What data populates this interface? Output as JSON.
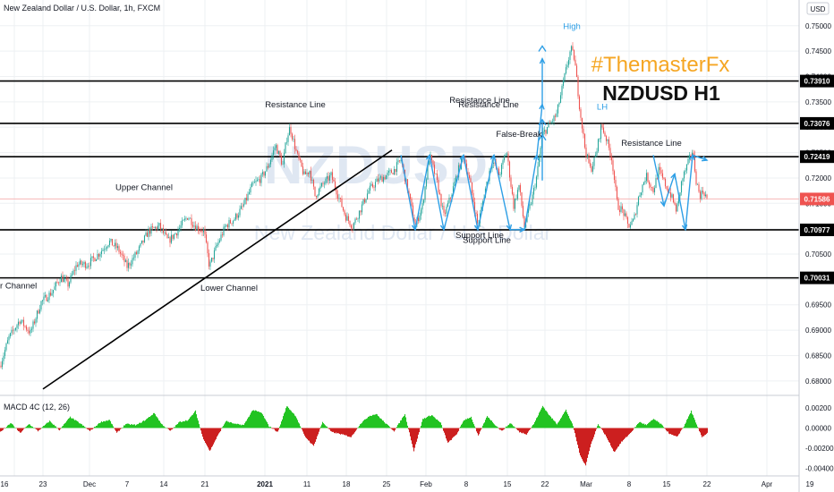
{
  "header": {
    "symbol_title": "New Zealand Dollar / U.S. Dollar, 1h, FXCM"
  },
  "currency_label": "USD",
  "watermark": {
    "primary": "NZDUSD",
    "secondary": "New Zealand Dollar / U.S. Dollar"
  },
  "brand_tag": "#ThemasterFx",
  "pair_heading": "NZDUSD H1",
  "colors": {
    "up": "#26a69a",
    "down": "#ef5350",
    "macd_up": "#22c322",
    "macd_down": "#cc1f1f",
    "annotation_blue": "#2e9fe6",
    "brand_orange": "#f5a623",
    "last_price_line": "#f7b6b6"
  },
  "chart_data": [
    {
      "type": "candlestick",
      "title": "",
      "x_ticks": [
        "16",
        "23",
        "Dec",
        "7",
        "14",
        "21",
        "2021",
        "11",
        "18",
        "25",
        "Feb",
        "8",
        "15",
        "22",
        "Mar",
        "8",
        "15",
        "22",
        "Apr",
        "19"
      ],
      "y_ticks": [
        0.68,
        0.685,
        0.69,
        0.695,
        0.7,
        0.705,
        0.71,
        0.715,
        0.72,
        0.725,
        0.73,
        0.735,
        0.74,
        0.745,
        0.75
      ],
      "y_tick_labels": [
        "0.68000",
        "0.68500",
        "0.69000",
        "0.69500",
        "0.70000",
        "0.70500",
        "0.71000",
        "0.71500",
        "0.72000",
        "0.72500",
        "0.73000",
        "0.73500",
        "0.74000",
        "0.74500",
        "0.75000"
      ],
      "ylim": [
        0.6775,
        0.7519
      ],
      "price_path": [
        [
          0,
          0.683
        ],
        [
          10,
          0.6885
        ],
        [
          22,
          0.692
        ],
        [
          34,
          0.6895
        ],
        [
          46,
          0.6955
        ],
        [
          58,
          0.6975
        ],
        [
          68,
          0.7005
        ],
        [
          76,
          0.699
        ],
        [
          86,
          0.703
        ],
        [
          98,
          0.703
        ],
        [
          110,
          0.705
        ],
        [
          122,
          0.7075
        ],
        [
          132,
          0.706
        ],
        [
          142,
          0.7025
        ],
        [
          154,
          0.7055
        ],
        [
          166,
          0.7095
        ],
        [
          178,
          0.7105
        ],
        [
          188,
          0.7075
        ],
        [
          198,
          0.7095
        ],
        [
          210,
          0.7125
        ],
        [
          218,
          0.7105
        ],
        [
          228,
          0.7095
        ],
        [
          234,
          0.7025
        ],
        [
          242,
          0.7065
        ],
        [
          252,
          0.7105
        ],
        [
          262,
          0.712
        ],
        [
          272,
          0.7145
        ],
        [
          282,
          0.7185
        ],
        [
          292,
          0.72
        ],
        [
          300,
          0.7225
        ],
        [
          308,
          0.7265
        ],
        [
          316,
          0.7225
        ],
        [
          320,
          0.7275
        ],
        [
          324,
          0.73
        ],
        [
          332,
          0.7245
        ],
        [
          340,
          0.7205
        ],
        [
          346,
          0.7215
        ],
        [
          352,
          0.7165
        ],
        [
          360,
          0.7185
        ],
        [
          370,
          0.7205
        ],
        [
          378,
          0.7165
        ],
        [
          386,
          0.7125
        ],
        [
          394,
          0.7105
        ],
        [
          402,
          0.7135
        ],
        [
          412,
          0.7175
        ],
        [
          422,
          0.7195
        ],
        [
          432,
          0.7205
        ],
        [
          440,
          0.7215
        ],
        [
          448,
          0.7235
        ],
        [
          456,
          0.7175
        ],
        [
          464,
          0.7105
        ],
        [
          472,
          0.7145
        ],
        [
          480,
          0.7245
        ],
        [
          488,
          0.7195
        ],
        [
          496,
          0.7125
        ],
        [
          504,
          0.7165
        ],
        [
          512,
          0.7215
        ],
        [
          518,
          0.7245
        ],
        [
          526,
          0.7185
        ],
        [
          534,
          0.7105
        ],
        [
          542,
          0.7175
        ],
        [
          550,
          0.7235
        ],
        [
          558,
          0.7205
        ],
        [
          566,
          0.7255
        ],
        [
          574,
          0.7145
        ],
        [
          580,
          0.7185
        ],
        [
          586,
          0.7105
        ],
        [
          594,
          0.7155
        ],
        [
          600,
          0.7205
        ],
        [
          606,
          0.7285
        ],
        [
          614,
          0.7305
        ],
        [
          622,
          0.7325
        ],
        [
          628,
          0.7375
        ],
        [
          634,
          0.7425
        ],
        [
          638,
          0.7455
        ],
        [
          642,
          0.7435
        ],
        [
          648,
          0.7335
        ],
        [
          654,
          0.7255
        ],
        [
          660,
          0.7215
        ],
        [
          666,
          0.7245
        ],
        [
          672,
          0.7305
        ],
        [
          678,
          0.7275
        ],
        [
          684,
          0.7235
        ],
        [
          690,
          0.7145
        ],
        [
          696,
          0.7135
        ],
        [
          702,
          0.7105
        ],
        [
          708,
          0.7115
        ],
        [
          714,
          0.7165
        ],
        [
          722,
          0.7205
        ],
        [
          730,
          0.7175
        ],
        [
          736,
          0.7215
        ],
        [
          744,
          0.7185
        ],
        [
          750,
          0.7165
        ],
        [
          756,
          0.7135
        ],
        [
          762,
          0.7195
        ],
        [
          768,
          0.7225
        ],
        [
          774,
          0.7255
        ],
        [
          778,
          0.7195
        ],
        [
          782,
          0.7165
        ],
        [
          786,
          0.7175
        ],
        [
          790,
          0.7159
        ]
      ],
      "horizontal_levels": [
        {
          "value": 0.7391,
          "label": "0.73910"
        },
        {
          "value": 0.73076,
          "label": "0.73076"
        },
        {
          "value": 0.72419,
          "label": "0.72419"
        },
        {
          "value": 0.70977,
          "label": "0.70977"
        },
        {
          "value": 0.70031,
          "label": "0.70031"
        }
      ],
      "last_price": {
        "value": 0.71586,
        "label": "0.71586"
      },
      "trendline": {
        "from": [
          48,
          0.6784
        ],
        "to": [
          438,
          0.7255
        ]
      },
      "annotations": [
        {
          "text": "Resistance Line",
          "x": 330,
          "y": 0.7339
        },
        {
          "text": "Upper Channel",
          "x": 161,
          "y": 0.7176
        },
        {
          "text": "er Channel",
          "x": 18,
          "y": 0.6982
        },
        {
          "text": "Lower Channel",
          "x": 256,
          "y": 0.6978
        },
        {
          "text": "Resistance Line",
          "x": 536,
          "y": 0.7348
        },
        {
          "text": "Resistance Line",
          "x": 546,
          "y": 0.7339
        },
        {
          "text": "False-Break",
          "x": 580,
          "y": 0.7281
        },
        {
          "text": "Support Line",
          "x": 536,
          "y": 0.7082
        },
        {
          "text": "Support Line",
          "x": 544,
          "y": 0.7072
        },
        {
          "text": "High",
          "x": 639,
          "y": 0.7493,
          "color": "blue"
        },
        {
          "text": "LH",
          "x": 673,
          "y": 0.7335,
          "color": "blue"
        },
        {
          "text": "Resistance Line",
          "x": 728,
          "y": 0.7263
        }
      ],
      "zigzag_paths": [
        [
          [
            448,
            0.7245
          ],
          [
            464,
            0.7098
          ],
          [
            480,
            0.7245
          ],
          [
            496,
            0.7098
          ],
          [
            518,
            0.7245
          ],
          [
            534,
            0.7098
          ],
          [
            552,
            0.7245
          ],
          [
            570,
            0.7098
          ],
          [
            586,
            0.7098
          ],
          [
            600,
            0.7245
          ],
          [
            606,
            0.7345
          ],
          [
            606,
            0.7435
          ]
        ],
        [
          [
            730,
            0.7245
          ],
          [
            742,
            0.7145
          ],
          [
            754,
            0.7208
          ],
          [
            766,
            0.7098
          ],
          [
            774,
            0.7245
          ],
          [
            790,
            0.7235
          ]
        ]
      ]
    },
    {
      "type": "bar",
      "title": "MACD 4C (12, 26)",
      "y_ticks": [
        0.002,
        0,
        -0.002,
        -0.004
      ],
      "y_tick_labels": [
        "0.00200",
        "0.00000",
        "-0.00200",
        "-0.00400"
      ],
      "ylim": [
        -0.0046,
        0.0029
      ],
      "histogram_anchors": [
        [
          0,
          -0.0004
        ],
        [
          12,
          0.0005
        ],
        [
          22,
          -0.0005
        ],
        [
          32,
          0.0004
        ],
        [
          42,
          -0.0003
        ],
        [
          55,
          0.0007
        ],
        [
          66,
          -0.0002
        ],
        [
          78,
          0.0011
        ],
        [
          90,
          0.0004
        ],
        [
          100,
          -0.0003
        ],
        [
          112,
          0.0006
        ],
        [
          122,
          0.0008
        ],
        [
          130,
          -0.0005
        ],
        [
          140,
          0.0004
        ],
        [
          152,
          0.0003
        ],
        [
          162,
          0.0008
        ],
        [
          172,
          0.0015
        ],
        [
          180,
          0.0004
        ],
        [
          190,
          -0.0003
        ],
        [
          200,
          0.0006
        ],
        [
          210,
          0.0008
        ],
        [
          218,
          0.0017
        ],
        [
          226,
          -0.0009
        ],
        [
          234,
          -0.0023
        ],
        [
          242,
          -0.0009
        ],
        [
          252,
          0.0007
        ],
        [
          262,
          0.0004
        ],
        [
          272,
          0.0003
        ],
        [
          282,
          0.0018
        ],
        [
          292,
          0.0015
        ],
        [
          300,
          0.0002
        ],
        [
          310,
          -0.0004
        ],
        [
          320,
          0.0022
        ],
        [
          330,
          0.0012
        ],
        [
          340,
          -0.0008
        ],
        [
          350,
          -0.0018
        ],
        [
          360,
          0.0006
        ],
        [
          370,
          -0.0004
        ],
        [
          380,
          -0.0006
        ],
        [
          392,
          -0.0009
        ],
        [
          402,
          0.0004
        ],
        [
          412,
          0.0012
        ],
        [
          420,
          0.0014
        ],
        [
          430,
          0.0005
        ],
        [
          440,
          -0.0003
        ],
        [
          452,
          0.0014
        ],
        [
          462,
          -0.0023
        ],
        [
          472,
          0.0009
        ],
        [
          482,
          0.0013
        ],
        [
          492,
          0.0005
        ],
        [
          500,
          -0.0015
        ],
        [
          510,
          -0.0006
        ],
        [
          518,
          0.0008
        ],
        [
          526,
          0.0011
        ],
        [
          534,
          -0.0008
        ],
        [
          544,
          0.0012
        ],
        [
          552,
          0.0004
        ],
        [
          560,
          -0.0003
        ],
        [
          570,
          0.0005
        ],
        [
          580,
          -0.0004
        ],
        [
          588,
          -0.0006
        ],
        [
          596,
          0.0004
        ],
        [
          606,
          0.0022
        ],
        [
          614,
          0.0012
        ],
        [
          622,
          0.0004
        ],
        [
          632,
          0.0018
        ],
        [
          640,
          0.0002
        ],
        [
          648,
          -0.0028
        ],
        [
          654,
          -0.0037
        ],
        [
          660,
          -0.0016
        ],
        [
          668,
          0.0004
        ],
        [
          676,
          -0.0007
        ],
        [
          686,
          -0.0024
        ],
        [
          694,
          -0.0014
        ],
        [
          704,
          -0.0005
        ],
        [
          714,
          0.0006
        ],
        [
          722,
          0.0003
        ],
        [
          730,
          0.0009
        ],
        [
          738,
          0.0004
        ],
        [
          748,
          -0.0006
        ],
        [
          756,
          -0.0009
        ],
        [
          764,
          0.0002
        ],
        [
          772,
          0.0017
        ],
        [
          778,
          0.0003
        ],
        [
          784,
          -0.0009
        ],
        [
          790,
          -0.0005
        ]
      ]
    }
  ]
}
